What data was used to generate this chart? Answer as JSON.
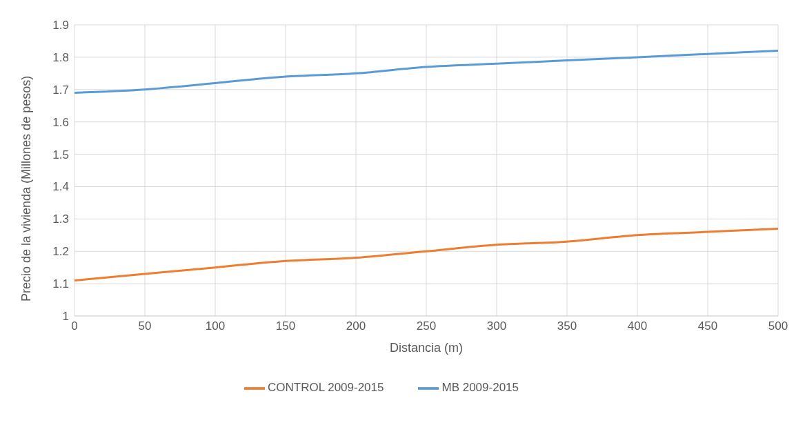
{
  "chart_data": {
    "type": "line",
    "xlabel": "Distancia (m)",
    "ylabel": "Precio de la vivienda (Millones de pesos)",
    "x": [
      0,
      50,
      100,
      150,
      200,
      250,
      300,
      350,
      400,
      450,
      500
    ],
    "series": [
      {
        "name": "MB 2009-2015",
        "color": "#5b9bd5",
        "values": [
          1.69,
          1.7,
          1.72,
          1.74,
          1.75,
          1.77,
          1.78,
          1.79,
          1.8,
          1.81,
          1.82
        ]
      },
      {
        "name": "CONTROL 2009-2015",
        "color": "#ed7d31",
        "values": [
          1.11,
          1.13,
          1.15,
          1.17,
          1.18,
          1.2,
          1.22,
          1.23,
          1.25,
          1.26,
          1.27
        ]
      }
    ],
    "xlim": [
      0,
      500
    ],
    "xticks": [
      0,
      50,
      100,
      150,
      200,
      250,
      300,
      350,
      400,
      450,
      500
    ],
    "ylim": [
      1,
      1.9
    ],
    "yticks": [
      1,
      1.1,
      1.2,
      1.3,
      1.4,
      1.5,
      1.6,
      1.7,
      1.8,
      1.9
    ],
    "grid": true,
    "legend": "bottom",
    "marker": "none",
    "line_style": "solid"
  }
}
